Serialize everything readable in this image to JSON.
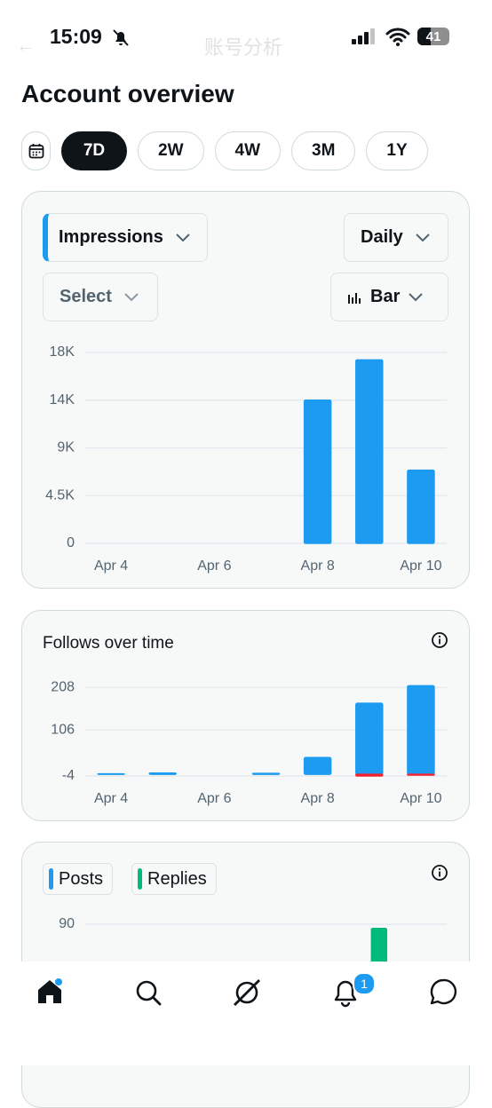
{
  "status_bar": {
    "time": "15:09",
    "battery": "41"
  },
  "header": {
    "faded_title": "账号分析",
    "title": "Account overview"
  },
  "range_options": [
    "7D",
    "2W",
    "4W",
    "3M",
    "1Y"
  ],
  "selected_range": 0,
  "controls": {
    "metric": "Impressions",
    "interval": "Daily",
    "compare": "Select",
    "chart_style": "Bar"
  },
  "chart_data": [
    {
      "type": "bar",
      "categories": [
        "Apr 4",
        null,
        "Apr 6",
        null,
        "Apr 8",
        null,
        "Apr 10"
      ],
      "values": [
        0,
        0,
        0,
        0,
        13500,
        17300,
        6900
      ],
      "color": "#1d9bf0",
      "ylim": [
        0,
        18000
      ],
      "yticks": [
        {
          "value": 18000,
          "label": "18K"
        },
        {
          "value": 13500,
          "label": "14K"
        },
        {
          "value": 9000,
          "label": "9K"
        },
        {
          "value": 4500,
          "label": "4.5K"
        },
        0
      ],
      "grid": true
    },
    {
      "type": "bar",
      "title": "Follows over time",
      "barmode": "relative",
      "categories": [
        "Apr 4",
        null,
        "Apr 6",
        null,
        "Apr 8",
        null,
        "Apr 10"
      ],
      "series": [
        {
          "color": "#1d9bf0",
          "values": [
            1,
            3,
            0,
            2,
            40,
            170,
            212
          ]
        },
        {
          "color": "#f4212e",
          "values": [
            0,
            0,
            0,
            0,
            0,
            -4,
            -2
          ]
        }
      ],
      "ylim": [
        -4,
        215
      ],
      "yticks": [
        208,
        106,
        -4
      ],
      "grid": true
    },
    {
      "type": "bar",
      "barmode": "group",
      "series": [
        {
          "name": "Posts",
          "color": "#1d9bf0",
          "values": [
            null,
            null,
            null,
            null,
            null,
            null,
            null
          ]
        },
        {
          "name": "Replies",
          "color": "#00ba7c",
          "values": [
            null,
            null,
            null,
            null,
            null,
            88,
            null
          ]
        }
      ],
      "ylim": [
        0,
        90
      ],
      "yticks": [
        90
      ],
      "grid": true
    }
  ],
  "nav": {
    "notifications_badge": "1"
  }
}
